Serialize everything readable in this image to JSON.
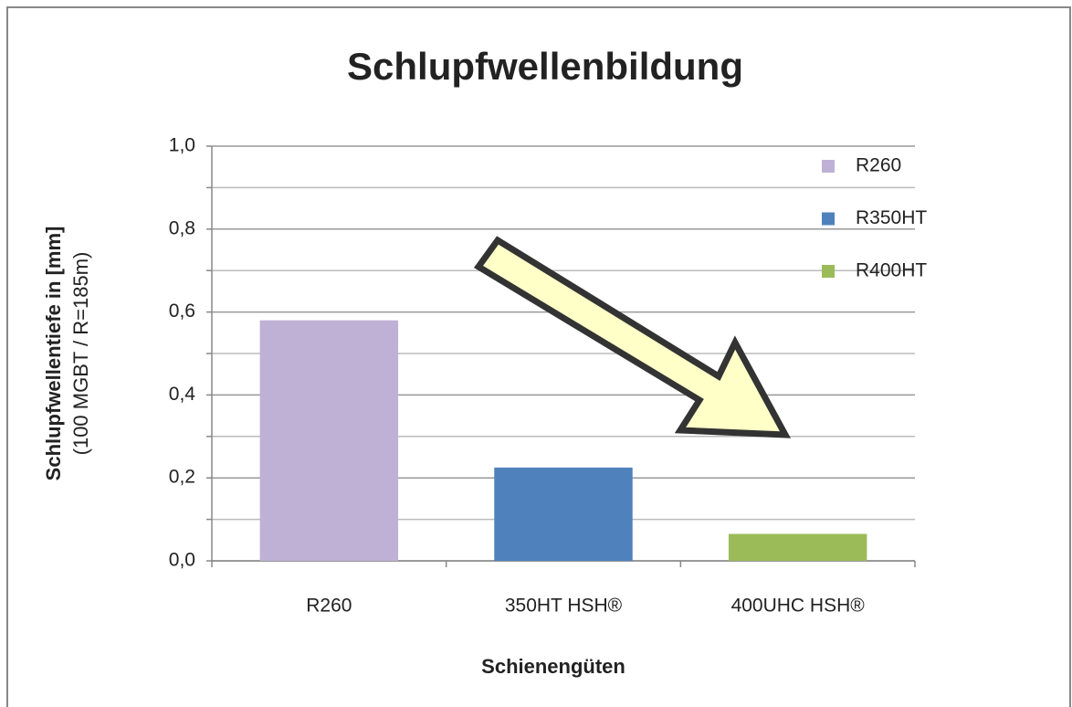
{
  "chart_data": {
    "type": "bar",
    "title": "Schlupfwellenbildung",
    "xlabel": "Schienengüten",
    "ylabel": "Schlupfwellentiefe in [mm]",
    "ylabel_sub": "(100 MGBT / R=185m)",
    "categories": [
      "R260",
      "350HT HSH®",
      "400UHC HSH®"
    ],
    "series": [
      {
        "name": "R260",
        "color": "#bfb1d5",
        "values": [
          0.58,
          null,
          null
        ]
      },
      {
        "name": "R350HT",
        "color": "#4f81bd",
        "values": [
          null,
          0.225,
          null
        ]
      },
      {
        "name": "R400HT",
        "color": "#9bbb59",
        "values": [
          null,
          null,
          0.065
        ]
      }
    ],
    "ylim": [
      0,
      1
    ],
    "yticks": [
      {
        "value": 0,
        "label": "0,0"
      },
      {
        "value": 0.2,
        "label": "0,2"
      },
      {
        "value": 0.4,
        "label": "0,4"
      },
      {
        "value": 0.6,
        "label": "0,6"
      },
      {
        "value": 0.8,
        "label": "0,8"
      },
      {
        "value": 1,
        "label": "1,0"
      }
    ],
    "yminorticks": [
      0.1,
      0.3,
      0.5,
      0.7,
      0.9
    ],
    "grid": true,
    "legend": "right"
  }
}
